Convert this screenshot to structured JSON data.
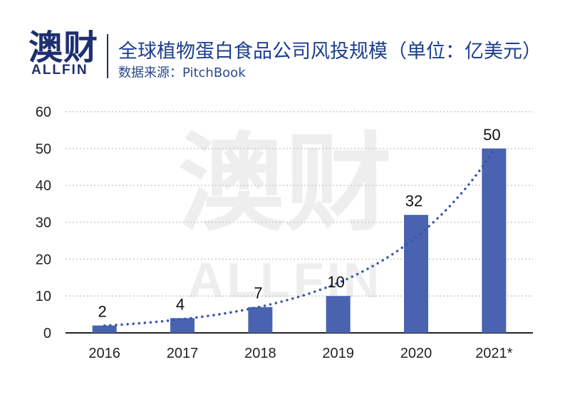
{
  "header": {
    "logo_cn": "澳财",
    "logo_en": "ALLFIN",
    "title": "全球植物蛋白食品公司风投规模（单位：亿美元）",
    "source": "数据来源：PitchBook"
  },
  "watermark": {
    "cn": "澳财",
    "en": "ALLFIN"
  },
  "colors": {
    "bar": "#4a63b0",
    "trend": "#3858a8",
    "grid": "#c9c9c9",
    "title": "#1d3f8f",
    "logo": "#1d2f6f"
  },
  "chart_data": {
    "type": "bar",
    "title": "全球植物蛋白食品公司风投规模（单位：亿美元）",
    "categories": [
      "2016",
      "2017",
      "2018",
      "2019",
      "2020",
      "2021*"
    ],
    "values": [
      2,
      4,
      7,
      10,
      32,
      50
    ],
    "data_labels": [
      "2",
      "4",
      "7",
      "10",
      "32",
      "50"
    ],
    "ylim": [
      0,
      60
    ],
    "yticks": [
      0,
      10,
      20,
      30,
      40,
      50,
      60
    ],
    "grid": "horizontal dotted",
    "trendline": "exponential dotted"
  }
}
